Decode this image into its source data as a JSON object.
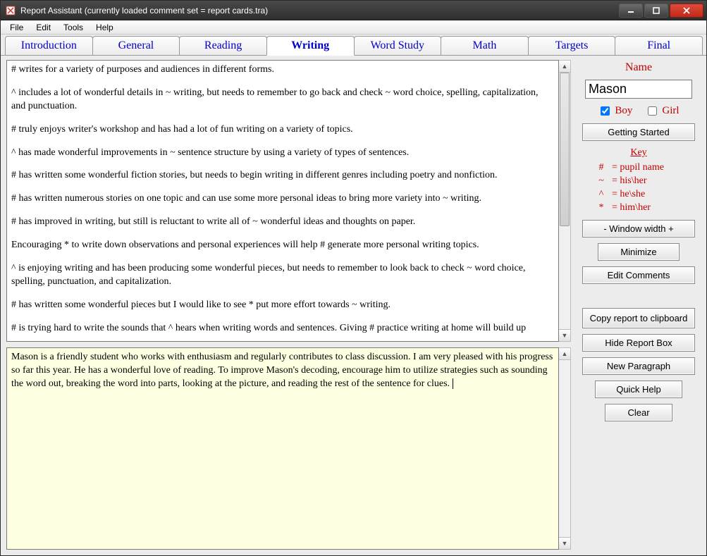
{
  "window": {
    "title": "Report Assistant (currently loaded comment set = report cards.tra)"
  },
  "menubar": [
    "File",
    "Edit",
    "Tools",
    "Help"
  ],
  "tabs": {
    "items": [
      "Introduction",
      "General",
      "Reading",
      "Writing",
      "Word Study",
      "Math",
      "Targets",
      "Final"
    ],
    "active_index": 3
  },
  "comments": [
    "# writes for a variety of purposes and audiences in different forms.",
    "^ includes a lot of wonderful details in ~ writing, but needs to remember to go back and check ~ word choice, spelling, capitalization, and punctuation.",
    "# truly enjoys writer's workshop and has had a lot of fun writing on a variety of topics.",
    "^ has made wonderful improvements in ~ sentence structure by using a variety of types of sentences.",
    "# has written some wonderful fiction stories, but needs to begin writing in different genres including poetry and nonfiction.",
    "# has written numerous stories on one topic and can use some more personal ideas to bring more variety into ~ writing.",
    "# has improved in writing, but still is reluctant to write all of ~ wonderful ideas and thoughts on paper.",
    "Encouraging * to write down observations and personal experiences will help # generate more personal writing topics.",
    "^ is enjoying writing and has been producing some wonderful pieces, but needs to remember to look back to check ~ word choice, spelling, punctuation, and capitalization.",
    "# has written some wonderful pieces but I would like to see * put more effort towards ~ writing.",
    "# is trying hard to write the sounds that ^  hears when writing words and sentences. Giving # practice writing at home will build up"
  ],
  "report_text": "Mason is a friendly student who works with enthusiasm and regularly contributes to class discussion. I am very pleased with his progress so far this year. He has a wonderful love of reading. To improve Mason's decoding, encourage him to utilize strategies such as sounding the word out, breaking the word into parts, looking at the picture, and reading the rest of the sentence for clues. ",
  "side": {
    "name_label": "Name",
    "name_value": "Mason",
    "boy_label": "Boy",
    "girl_label": "Girl",
    "boy_checked": true,
    "girl_checked": false,
    "key_title": "Key",
    "key_rows": [
      {
        "sym": "#",
        "desc": "= pupil name"
      },
      {
        "sym": "~",
        "desc": "=  his\\her"
      },
      {
        "sym": "^",
        "desc": "=  he\\she"
      },
      {
        "sym": "*",
        "desc": "=  him\\her"
      }
    ],
    "buttons": {
      "getting_started": "Getting Started",
      "window_width": "-  Window width  +",
      "minimize": "Minimize",
      "edit_comments": "Edit Comments",
      "copy_report": "Copy report to clipboard",
      "hide_report": "Hide Report Box",
      "new_paragraph": "New Paragraph",
      "quick_help": "Quick Help",
      "clear": "Clear"
    }
  },
  "colors": {
    "accent_nav": "#0000cc",
    "accent_red": "#c00000",
    "report_bg": "#ffffe1",
    "window_bg": "#ececec"
  }
}
